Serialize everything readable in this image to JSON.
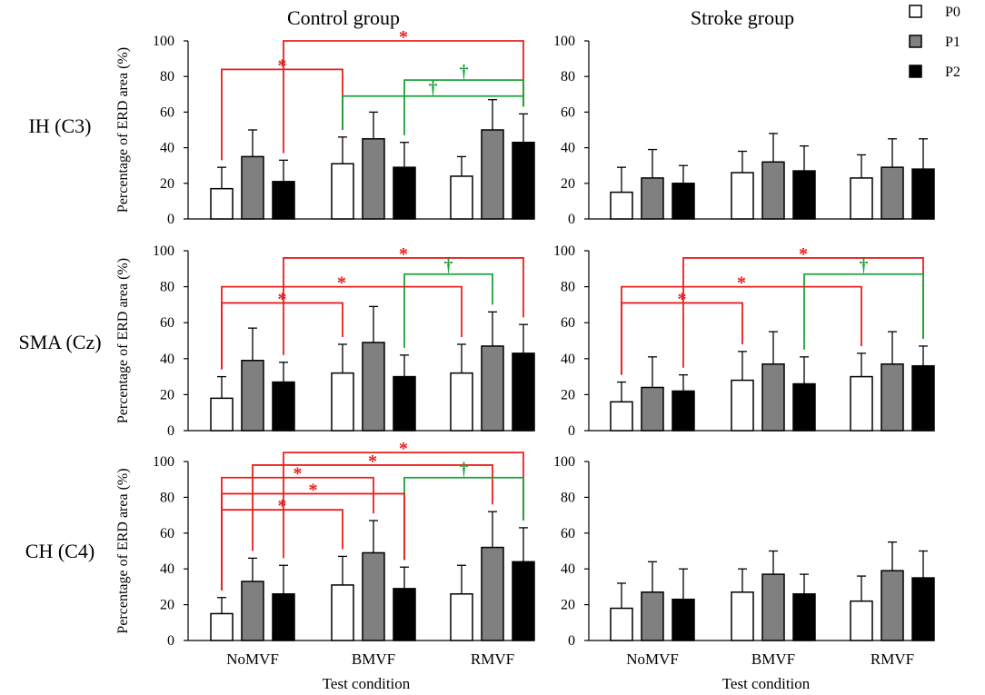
{
  "chart_data": {
    "type": "bar",
    "column_titles": [
      "Control group",
      "Stroke group"
    ],
    "row_labels": [
      "IH (C3)",
      "SMA (Cz)",
      "CH (C4)"
    ],
    "categories": [
      "NoMVF",
      "BMVF",
      "RMVF"
    ],
    "legend": [
      {
        "name": "P0",
        "color": "#ffffff"
      },
      {
        "name": "P1",
        "color": "#808080"
      },
      {
        "name": "P2",
        "color": "#000000"
      }
    ],
    "xlabel": "Test condition",
    "ylabel": "Percentage of ERD area (%)",
    "ylim": [
      0,
      100
    ],
    "yticks": [
      0,
      20,
      40,
      60,
      80,
      100
    ],
    "colors": {
      "significant": "#e8201e",
      "trend": "#1aa33a"
    },
    "markers": {
      "significant": "*",
      "trend": "†"
    },
    "panels": [
      {
        "group": "Control group",
        "row": "IH (C3)",
        "series": [
          {
            "name": "P0",
            "values": [
              17,
              31,
              24
            ],
            "errors": [
              12,
              15,
              11
            ]
          },
          {
            "name": "P1",
            "values": [
              35,
              45,
              50
            ],
            "errors": [
              15,
              15,
              17
            ]
          },
          {
            "name": "P2",
            "values": [
              21,
              29,
              43
            ],
            "errors": [
              12,
              14,
              16
            ]
          }
        ],
        "brackets": [
          {
            "type": "significant",
            "from": [
              0,
              2
            ],
            "to": [
              2,
              2
            ],
            "level": 100
          },
          {
            "type": "significant",
            "from": [
              0,
              0
            ],
            "to": [
              1,
              0
            ],
            "level": 84
          },
          {
            "type": "trend",
            "from": [
              1,
              2
            ],
            "to": [
              2,
              2
            ],
            "level": 78
          },
          {
            "type": "trend",
            "from": [
              1,
              0
            ],
            "to": [
              2,
              2
            ],
            "level": 69,
            "drop": 60
          }
        ]
      },
      {
        "group": "Stroke group",
        "row": "IH (C3)",
        "series": [
          {
            "name": "P0",
            "values": [
              15,
              26,
              23
            ],
            "errors": [
              14,
              12,
              13
            ]
          },
          {
            "name": "P1",
            "values": [
              23,
              32,
              29
            ],
            "errors": [
              16,
              16,
              16
            ]
          },
          {
            "name": "P2",
            "values": [
              20,
              27,
              28
            ],
            "errors": [
              10,
              14,
              17
            ]
          }
        ],
        "brackets": []
      },
      {
        "group": "Control group",
        "row": "SMA (Cz)",
        "series": [
          {
            "name": "P0",
            "values": [
              18,
              32,
              32
            ],
            "errors": [
              12,
              16,
              16
            ]
          },
          {
            "name": "P1",
            "values": [
              39,
              49,
              47
            ],
            "errors": [
              18,
              20,
              19
            ]
          },
          {
            "name": "P2",
            "values": [
              27,
              30,
              43
            ],
            "errors": [
              11,
              12,
              16
            ]
          }
        ],
        "brackets": [
          {
            "type": "significant",
            "from": [
              0,
              2
            ],
            "to": [
              2,
              2
            ],
            "level": 96
          },
          {
            "type": "trend",
            "from": [
              1,
              2
            ],
            "to": [
              2,
              1
            ],
            "level": 87
          },
          {
            "type": "significant",
            "from": [
              0,
              0
            ],
            "to": [
              2,
              0
            ],
            "level": 80
          },
          {
            "type": "significant",
            "from": [
              0,
              0
            ],
            "to": [
              1,
              0
            ],
            "level": 71
          }
        ]
      },
      {
        "group": "Stroke group",
        "row": "SMA (Cz)",
        "series": [
          {
            "name": "P0",
            "values": [
              16,
              28,
              30
            ],
            "errors": [
              11,
              16,
              13
            ]
          },
          {
            "name": "P1",
            "values": [
              24,
              37,
              37
            ],
            "errors": [
              17,
              18,
              18
            ]
          },
          {
            "name": "P2",
            "values": [
              22,
              26,
              36
            ],
            "errors": [
              9,
              15,
              11
            ]
          }
        ],
        "brackets": [
          {
            "type": "significant",
            "from": [
              0,
              2
            ],
            "to": [
              2,
              2
            ],
            "level": 96
          },
          {
            "type": "trend",
            "from": [
              1,
              2
            ],
            "to": [
              2,
              2
            ],
            "level": 87
          },
          {
            "type": "significant",
            "from": [
              0,
              0
            ],
            "to": [
              2,
              0
            ],
            "level": 80
          },
          {
            "type": "significant",
            "from": [
              0,
              0
            ],
            "to": [
              1,
              0
            ],
            "level": 71
          }
        ]
      },
      {
        "group": "Control group",
        "row": "CH (C4)",
        "series": [
          {
            "name": "P0",
            "values": [
              15,
              31,
              26
            ],
            "errors": [
              9,
              16,
              16
            ]
          },
          {
            "name": "P1",
            "values": [
              33,
              49,
              52
            ],
            "errors": [
              13,
              18,
              20
            ]
          },
          {
            "name": "P2",
            "values": [
              26,
              29,
              44
            ],
            "errors": [
              16,
              12,
              19
            ]
          }
        ],
        "brackets": [
          {
            "type": "significant",
            "from": [
              0,
              2
            ],
            "to": [
              2,
              2
            ],
            "level": 105
          },
          {
            "type": "significant",
            "from": [
              0,
              1
            ],
            "to": [
              2,
              1
            ],
            "level": 98
          },
          {
            "type": "significant",
            "from": [
              0,
              0
            ],
            "to": [
              1,
              1
            ],
            "level": 91
          },
          {
            "type": "trend",
            "from": [
              1,
              2
            ],
            "to": [
              2,
              2
            ],
            "level": 91
          },
          {
            "type": "significant",
            "from": [
              0,
              0
            ],
            "to": [
              1,
              2
            ],
            "level": 82
          },
          {
            "type": "significant",
            "from": [
              0,
              0
            ],
            "to": [
              1,
              0
            ],
            "level": 73
          }
        ]
      },
      {
        "group": "Stroke group",
        "row": "CH (C4)",
        "series": [
          {
            "name": "P0",
            "values": [
              18,
              27,
              22
            ],
            "errors": [
              14,
              13,
              14
            ]
          },
          {
            "name": "P1",
            "values": [
              27,
              37,
              39
            ],
            "errors": [
              17,
              13,
              16
            ]
          },
          {
            "name": "P2",
            "values": [
              23,
              26,
              35
            ],
            "errors": [
              17,
              11,
              15
            ]
          }
        ],
        "brackets": []
      }
    ]
  }
}
